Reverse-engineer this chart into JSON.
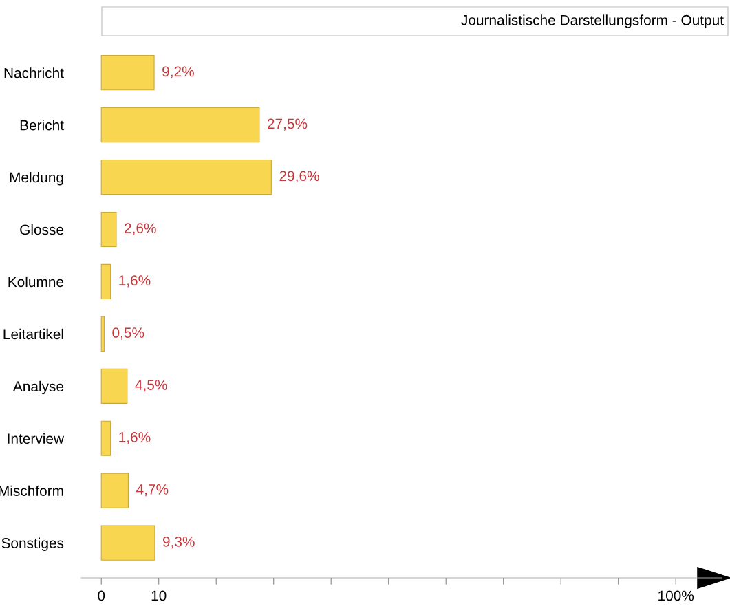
{
  "chart_data": {
    "type": "bar",
    "orientation": "horizontal",
    "title": "Journalistische Darstellungsform - Output",
    "categories": [
      "Nachricht",
      "Bericht",
      "Meldung",
      "Glosse",
      "Kolumne",
      "Leitartikel",
      "Analyse",
      "Interview",
      "Mischform",
      "Sonstiges"
    ],
    "values": [
      9.2,
      27.5,
      29.6,
      2.6,
      1.6,
      0.5,
      4.5,
      1.6,
      4.7,
      9.3
    ],
    "value_labels": [
      "9,2%",
      "27,5%",
      "29,6%",
      "2,6%",
      "1,6%",
      "0,5%",
      "4,5%",
      "1,6%",
      "4,7%",
      "9,3%"
    ],
    "color": "#f9d64f",
    "xlim": [
      -3.5,
      108
    ],
    "xticks": [
      0,
      10,
      {
        "value": 20,
        "label": null
      },
      {
        "value": 30,
        "label": null
      },
      {
        "value": 40,
        "label": null
      },
      {
        "value": 50,
        "label": null
      },
      {
        "value": 60,
        "label": null
      },
      {
        "value": 70,
        "label": null
      },
      {
        "value": 80,
        "label": null
      },
      {
        "value": 90,
        "label": null
      },
      {
        "value": 100,
        "label": "100%"
      }
    ],
    "grid": false,
    "legend": false
  }
}
